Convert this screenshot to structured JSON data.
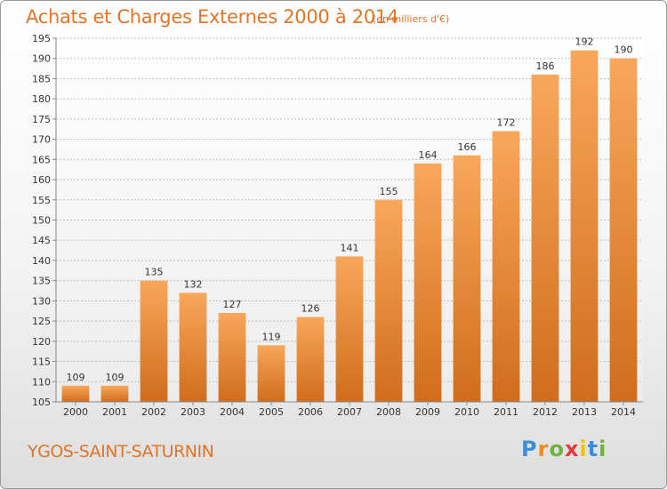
{
  "title": "Achats et Charges Externes 2000 à 2014",
  "unit_note": "(en milliers d'€)",
  "location": "YGOS-SAINT-SATURNIN",
  "logo": {
    "text": "Proxiti",
    "colors": {
      "P": "#3a8fd6",
      "r": "#f08a1e",
      "o": "#6cb33f",
      "x": "#e43a3a",
      "i": "#f2c200",
      "t": "#3a8fd6"
    }
  },
  "colors": {
    "bar_top": "#f8a75a",
    "bar_bottom": "#d06d1c",
    "text_accent": "#e0752a",
    "grid": "#bfbfbf"
  },
  "chart_data": {
    "type": "bar",
    "categories": [
      "2000",
      "2001",
      "2002",
      "2003",
      "2004",
      "2005",
      "2006",
      "2007",
      "2008",
      "2009",
      "2010",
      "2011",
      "2012",
      "2013",
      "2014"
    ],
    "values": [
      109,
      109,
      135,
      132,
      127,
      119,
      126,
      141,
      155,
      164,
      166,
      172,
      186,
      192,
      190
    ],
    "title": "Achats et Charges Externes 2000 à 2014",
    "xlabel": "",
    "ylabel": "",
    "ylim": [
      105,
      195
    ],
    "yticks": [
      105,
      110,
      115,
      120,
      125,
      130,
      135,
      140,
      145,
      150,
      155,
      160,
      165,
      170,
      175,
      180,
      185,
      190,
      195
    ],
    "grid": true,
    "data_labels": true
  }
}
